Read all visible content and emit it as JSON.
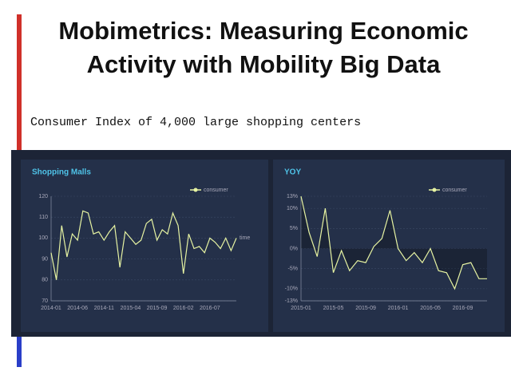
{
  "title": "Mobimetrics: Measuring Economic Activity with Mobility Big Data",
  "subtitle": "Consumer Index of 4,000 large shopping centers",
  "chart_data": [
    {
      "type": "line",
      "title": "Shopping Malls",
      "xlabel": "time",
      "categories": [
        "2014-01",
        null,
        null,
        null,
        null,
        "2014-06",
        null,
        null,
        null,
        null,
        "2014-11",
        null,
        null,
        null,
        null,
        "2015-04",
        null,
        null,
        null,
        null,
        "2015-09",
        null,
        null,
        null,
        null,
        "2016-02",
        null,
        null,
        null,
        null,
        "2016-07",
        null,
        null,
        null,
        null,
        null
      ],
      "series": [
        {
          "name": "consumer",
          "color": "#e6f3a2",
          "values": [
            93,
            80,
            106,
            91,
            102,
            99,
            113,
            112,
            102,
            103,
            99,
            103,
            106,
            86,
            103,
            100,
            97,
            99,
            107,
            109,
            99,
            104,
            102,
            112,
            106,
            83,
            102,
            95,
            96,
            93,
            100,
            98,
            95,
            100,
            94,
            100
          ]
        }
      ],
      "ylim": [
        70,
        120
      ],
      "yticks": [
        70,
        80,
        90,
        100,
        110,
        120
      ],
      "grid": true,
      "area": false
    },
    {
      "type": "line",
      "title": "YOY",
      "categories": [
        "2015-01",
        null,
        null,
        null,
        "2015-05",
        null,
        null,
        null,
        "2015-09",
        null,
        null,
        null,
        "2016-01",
        null,
        null,
        null,
        "2016-05",
        null,
        null,
        null,
        "2016-09",
        null,
        null,
        null
      ],
      "series": [
        {
          "name": "consumer",
          "color": "#e6f3a2",
          "values": [
            13,
            4,
            -2,
            10,
            -6,
            -0.5,
            -5.5,
            -3,
            -3.5,
            0.5,
            2.5,
            9.5,
            0,
            -3,
            -1,
            -3.5,
            0,
            -5.5,
            -6,
            -10,
            -4,
            -3.5,
            -7.5,
            -7.5
          ]
        }
      ],
      "ylim": [
        -13,
        13
      ],
      "yticks": [
        {
          "value": -13,
          "label": "-13%"
        },
        {
          "value": -10,
          "label": "-10%"
        },
        {
          "value": -5,
          "label": "-5%"
        },
        {
          "value": 0,
          "label": "0%"
        },
        {
          "value": 5,
          "label": "5%"
        },
        {
          "value": 10,
          "label": "10%"
        },
        {
          "value": 13,
          "label": "13%"
        }
      ],
      "grid": true,
      "area": true
    }
  ]
}
